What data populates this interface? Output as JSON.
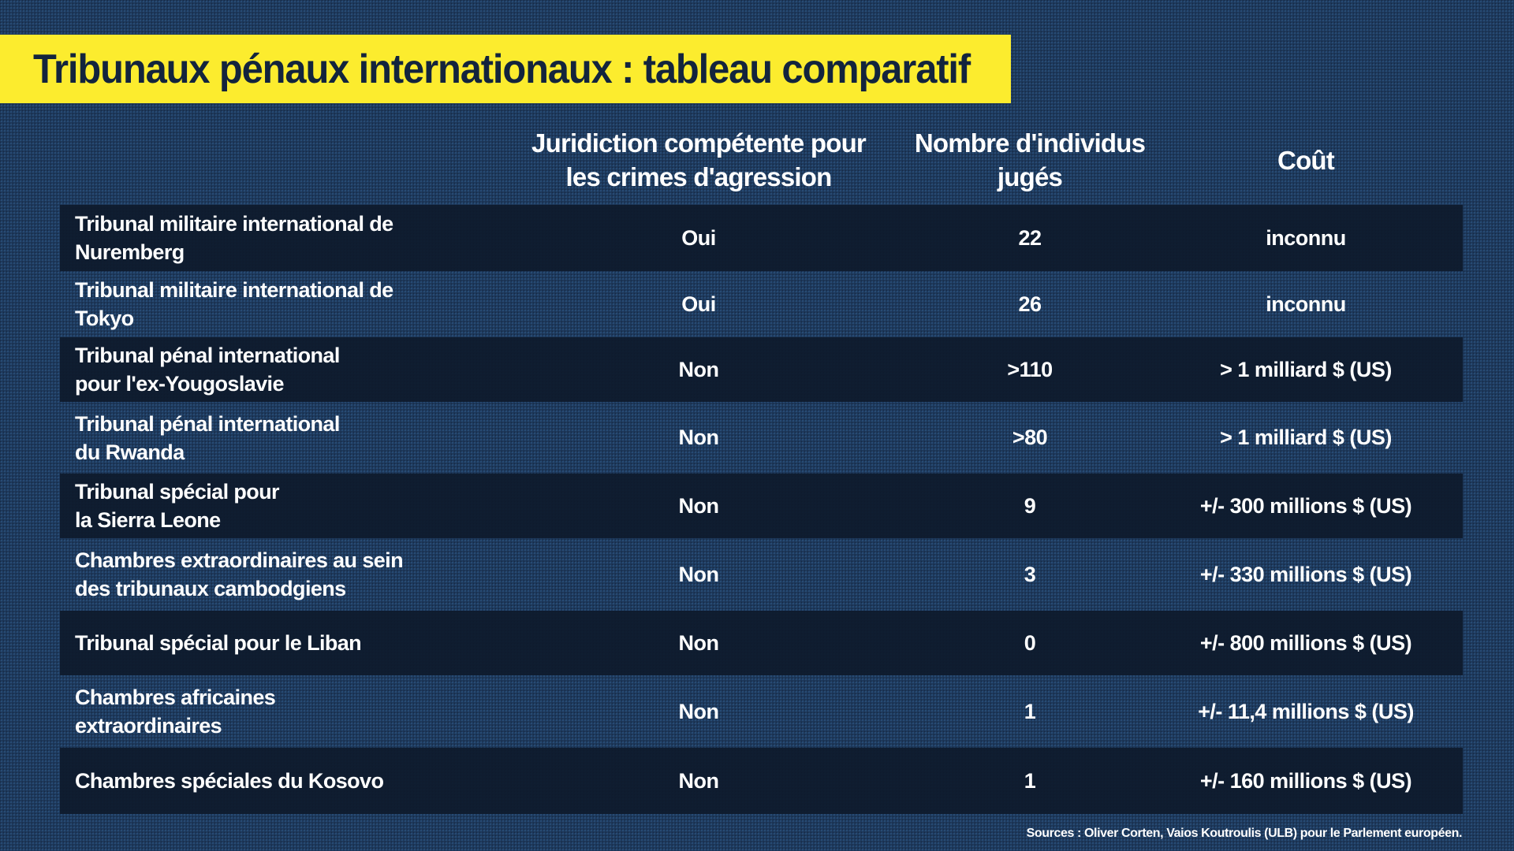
{
  "title": "Tribunaux pénaux internationaux : tableau comparatif",
  "columns": {
    "agression": "Juridiction compétente pour\nles crimes d'agression",
    "individus": "Nombre d'individus\njugés",
    "cout": "Coût"
  },
  "rows": [
    {
      "name": "Tribunal militaire international de\nNuremberg",
      "agression": "Oui",
      "individus": "22",
      "cout": "inconnu"
    },
    {
      "name": "Tribunal militaire international de\nTokyo",
      "agression": "Oui",
      "individus": "26",
      "cout": "inconnu"
    },
    {
      "name": "Tribunal pénal international\npour l'ex-Yougoslavie",
      "agression": "Non",
      "individus": ">110",
      "cout": "> 1 milliard $ (US)"
    },
    {
      "name": "Tribunal pénal international\ndu Rwanda",
      "agression": "Non",
      "individus": ">80",
      "cout": "> 1 milliard $ (US)"
    },
    {
      "name": "Tribunal spécial pour\nla Sierra Leone",
      "agression": "Non",
      "individus": "9",
      "cout": "+/- 300 millions $ (US)"
    },
    {
      "name": "Chambres extraordinaires au sein\ndes tribunaux cambodgiens",
      "agression": "Non",
      "individus": "3",
      "cout": "+/- 330 millions $ (US)"
    },
    {
      "name": "Tribunal spécial pour le Liban",
      "agression": "Non",
      "individus": "0",
      "cout": "+/- 800 millions $ (US)"
    },
    {
      "name": "Chambres africaines\nextraordinaires",
      "agression": "Non",
      "individus": "1",
      "cout": "+/- 11,4 millions $ (US)"
    },
    {
      "name": "Chambres spéciales du Kosovo",
      "agression": "Non",
      "individus": "1",
      "cout": "+/- 160 millions $ (US)"
    }
  ],
  "sources": "Sources : Oliver Corten, Vaios Koutroulis (ULB) pour le Parlement européen.",
  "colors": {
    "banner": "#fcec2e",
    "title_text": "#13243d",
    "background": "#1c3556",
    "row_dark": "#0e1b2c"
  }
}
